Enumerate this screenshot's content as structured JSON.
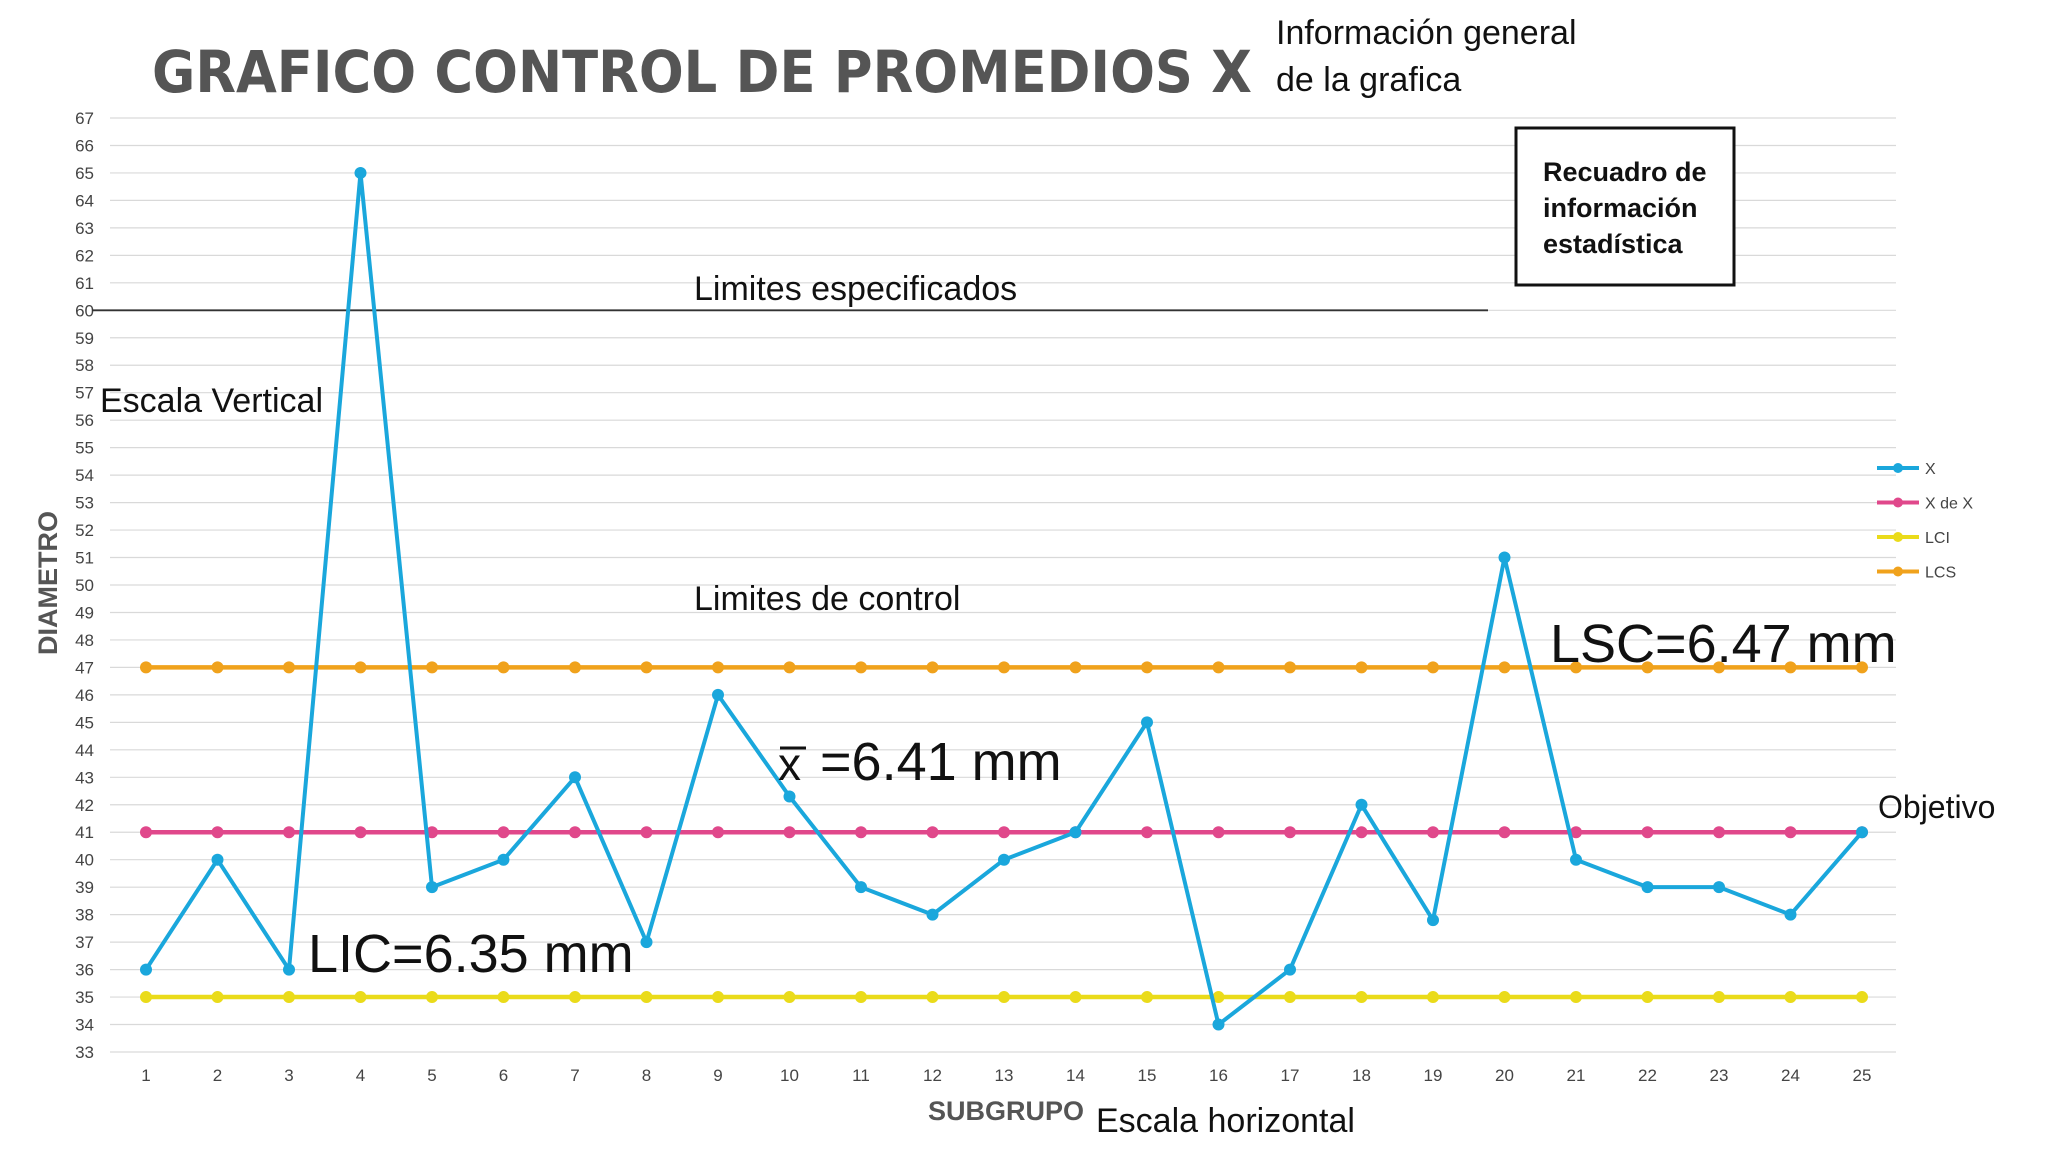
{
  "chart_data": {
    "type": "line",
    "title": "GRAFICO CONTROL DE PROMEDIOS X",
    "xlabel": "SUBGRUPO",
    "ylabel": "DIAMETRO",
    "categories": [
      "1",
      "2",
      "3",
      "4",
      "5",
      "6",
      "7",
      "8",
      "9",
      "10",
      "11",
      "12",
      "13",
      "14",
      "15",
      "16",
      "17",
      "18",
      "19",
      "20",
      "21",
      "22",
      "23",
      "24",
      "25"
    ],
    "ylim": [
      33,
      67
    ],
    "yticks": [
      "33",
      "34",
      "35",
      "36",
      "37",
      "38",
      "39",
      "40",
      "41",
      "42",
      "43",
      "44",
      "45",
      "46",
      "47",
      "48",
      "49",
      "50",
      "51",
      "52",
      "53",
      "54",
      "55",
      "56",
      "57",
      "58",
      "59",
      "60",
      "61",
      "62",
      "63",
      "64",
      "65",
      "66",
      "67"
    ],
    "grid": true,
    "legend_position": "right",
    "spec_limit_value": 60,
    "series": [
      {
        "name": "X",
        "color": "#1aa7dc",
        "values": [
          36,
          40,
          36,
          65,
          39,
          40,
          43,
          37,
          46,
          42.3,
          39,
          38,
          40,
          41,
          45,
          34,
          36,
          42,
          37.8,
          51,
          40,
          39,
          39,
          38,
          41
        ]
      },
      {
        "name": "X de X",
        "color": "#e0488b",
        "values": [
          41,
          41,
          41,
          41,
          41,
          41,
          41,
          41,
          41,
          41,
          41,
          41,
          41,
          41,
          41,
          41,
          41,
          41,
          41,
          41,
          41,
          41,
          41,
          41,
          41
        ]
      },
      {
        "name": "LCI",
        "color": "#eadb1a",
        "values": [
          35,
          35,
          35,
          35,
          35,
          35,
          35,
          35,
          35,
          35,
          35,
          35,
          35,
          35,
          35,
          35,
          35,
          35,
          35,
          35,
          35,
          35,
          35,
          35,
          35
        ]
      },
      {
        "name": "LCS",
        "color": "#f0a21c",
        "values": [
          47,
          47,
          47,
          47,
          47,
          47,
          47,
          47,
          47,
          47,
          47,
          47,
          47,
          47,
          47,
          47,
          47,
          47,
          47,
          47,
          47,
          47,
          47,
          47,
          47
        ]
      }
    ],
    "annotations": {
      "info_general_line1": "Información general",
      "info_general_line2": "de la grafica",
      "stat_box_line1": "Recuadro de",
      "stat_box_line2": "información",
      "stat_box_line3": "estadística",
      "spec_limits": "Limites especificados",
      "vertical_scale": "Escala Vertical",
      "control_limits": "Limites de control",
      "lsc": "LSC=6.47 mm",
      "mean_symbol": "x",
      "mean_value": "=6.41 mm",
      "lic": "LIC=6.35 mm",
      "objective": "Objetivo",
      "horizontal_scale": "Escala horizontal"
    }
  }
}
